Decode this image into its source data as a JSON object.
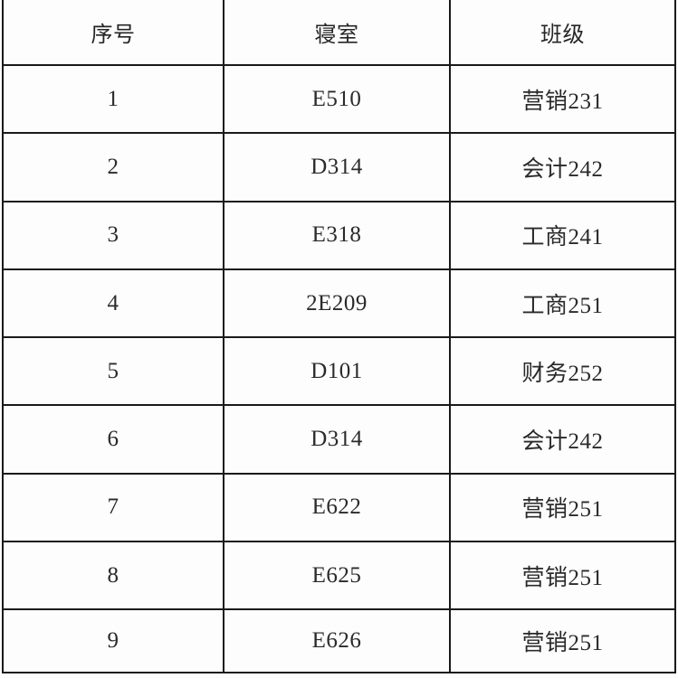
{
  "table": {
    "columns": [
      {
        "label": "序号"
      },
      {
        "label": "寝室"
      },
      {
        "label": "班级"
      }
    ],
    "rows": [
      {
        "index": "1",
        "dorm": "E510",
        "class": "营销231"
      },
      {
        "index": "2",
        "dorm": "D314",
        "class": "会计242"
      },
      {
        "index": "3",
        "dorm": "E318",
        "class": "工商241"
      },
      {
        "index": "4",
        "dorm": "2E209",
        "class": "工商251"
      },
      {
        "index": "5",
        "dorm": "D101",
        "class": "财务252"
      },
      {
        "index": "6",
        "dorm": "D314",
        "class": "会计242"
      },
      {
        "index": "7",
        "dorm": "E622",
        "class": "营销251"
      },
      {
        "index": "8",
        "dorm": "E625",
        "class": "营销251"
      },
      {
        "index": "9",
        "dorm": "E626",
        "class": "营销251"
      }
    ],
    "colors": {
      "border": "#1a1a1a",
      "text": "#2a2a2a",
      "background": "#fdfdfd"
    }
  }
}
